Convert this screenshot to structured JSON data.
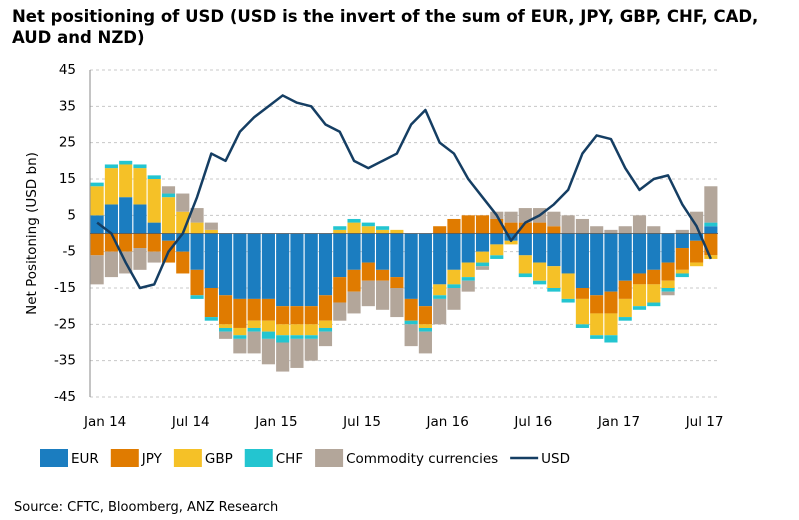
{
  "chart_data": {
    "type": "bar",
    "title": "Net positioning of USD (USD is the invert of the sum of EUR, JPY, GBP, CHF, CAD, AUD and NZD)",
    "y_label": "Net Positoning (USD bn)",
    "source": "Source: CFTC, Bloomberg, ANZ Research",
    "stacked": true,
    "grid": true,
    "ylim": [
      -45,
      45
    ],
    "yticks": [
      45,
      35,
      25,
      15,
      5,
      -5,
      -15,
      -25,
      -35,
      -45
    ],
    "categories": [
      "Jan 14",
      null,
      null,
      null,
      null,
      null,
      "Jul 14",
      null,
      null,
      null,
      null,
      null,
      "Jan 15",
      null,
      null,
      null,
      null,
      null,
      "Jul 15",
      null,
      null,
      null,
      null,
      null,
      "Jan 16",
      null,
      null,
      null,
      null,
      null,
      "Jul 16",
      null,
      null,
      null,
      null,
      null,
      "Jan 17",
      null,
      null,
      null,
      null,
      null,
      "Jul 17",
      null
    ],
    "series": [
      {
        "name": "EUR",
        "color": "#1b7dc0",
        "values": [
          5,
          8,
          10,
          8,
          3,
          -2,
          -5,
          -10,
          -15,
          -17,
          -18,
          -18,
          -18,
          -20,
          -20,
          -20,
          -17,
          -12,
          -10,
          -8,
          -10,
          -12,
          -18,
          -20,
          -14,
          -10,
          -8,
          -5,
          -3,
          -2,
          -6,
          -8,
          -9,
          -11,
          -15,
          -17,
          -16,
          -13,
          -11,
          -10,
          -8,
          -4,
          -2,
          2
        ]
      },
      {
        "name": "JPY",
        "color": "#e07b00",
        "values": [
          -6,
          -5,
          -5,
          -4,
          -5,
          -6,
          -6,
          -7,
          -8,
          -8,
          -8,
          -6,
          -6,
          -5,
          -5,
          -5,
          -7,
          -7,
          -6,
          -5,
          -3,
          -3,
          -6,
          -5,
          2,
          4,
          5,
          5,
          4,
          3,
          3,
          3,
          2,
          0,
          -3,
          -5,
          -6,
          -5,
          -3,
          -4,
          -5,
          -6,
          -6,
          -6
        ]
      },
      {
        "name": "GBP",
        "color": "#f5c127",
        "values": [
          8,
          10,
          9,
          10,
          12,
          10,
          6,
          3,
          1,
          -1,
          -2,
          -2,
          -3,
          -3,
          -3,
          -3,
          -2,
          1,
          3,
          2,
          1,
          1,
          0,
          -1,
          -3,
          -4,
          -4,
          -3,
          -3,
          -1,
          -5,
          -5,
          -6,
          -7,
          -7,
          -6,
          -6,
          -5,
          -6,
          -5,
          -2,
          -1,
          -1,
          -1
        ]
      },
      {
        "name": "CHF",
        "color": "#23c5d0",
        "values": [
          1,
          1,
          1,
          1,
          1,
          1,
          0,
          -1,
          -1,
          -1,
          -1,
          -1,
          -2,
          -2,
          -1,
          -1,
          -1,
          1,
          1,
          1,
          1,
          0,
          -1,
          -1,
          -1,
          -1,
          -1,
          -1,
          -1,
          0,
          -1,
          -1,
          -1,
          -1,
          -1,
          -1,
          -2,
          -1,
          -1,
          -1,
          -1,
          -1,
          0,
          1
        ]
      },
      {
        "name": "Commodity currencies",
        "color": "#b3a69a",
        "values": [
          -8,
          -7,
          -6,
          -6,
          -3,
          2,
          5,
          4,
          2,
          -2,
          -4,
          -6,
          -7,
          -8,
          -8,
          -6,
          -4,
          -5,
          -6,
          -7,
          -8,
          -8,
          -6,
          -6,
          -7,
          -6,
          -3,
          -1,
          2,
          3,
          4,
          4,
          4,
          5,
          4,
          2,
          1,
          2,
          5,
          2,
          -1,
          1,
          6,
          10
        ]
      },
      {
        "name": "USD",
        "color": "#153e63",
        "type": "line",
        "values": [
          3,
          0,
          -8,
          -15,
          -14,
          -5,
          0,
          10,
          22,
          20,
          28,
          32,
          35,
          38,
          36,
          35,
          30,
          28,
          20,
          18,
          20,
          22,
          30,
          34,
          25,
          22,
          15,
          10,
          5,
          -2,
          3,
          5,
          8,
          12,
          22,
          27,
          26,
          18,
          12,
          15,
          16,
          8,
          2,
          -7
        ]
      }
    ]
  }
}
